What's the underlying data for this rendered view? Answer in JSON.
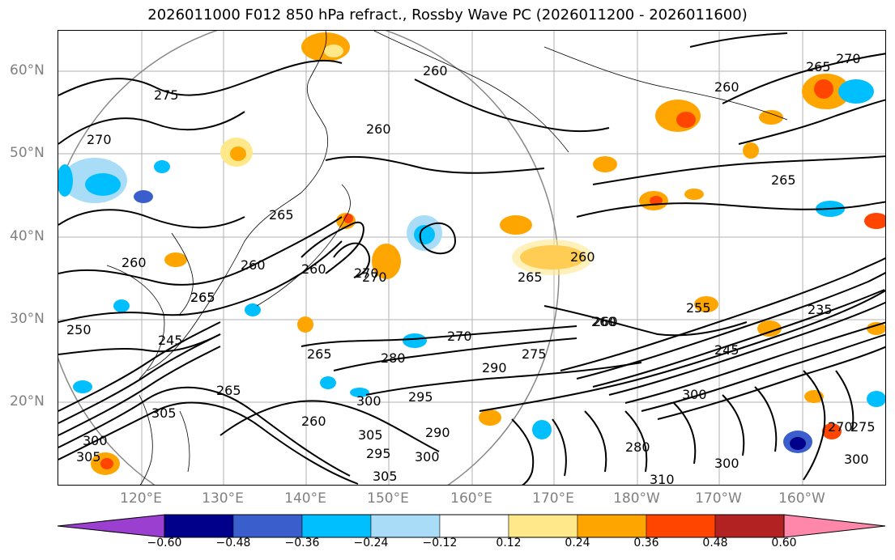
{
  "title": "2026011000 F012 850 hPa refract., Rossby Wave PC (2026011200 - 2026011600)",
  "lat_labels": [
    "60°N",
    "50°N",
    "40°N",
    "30°N",
    "20°N"
  ],
  "lon_labels": [
    "120°E",
    "130°E",
    "140°E",
    "150°E",
    "160°E",
    "170°E",
    "180°W",
    "170°W",
    "160°W"
  ],
  "colorbar": {
    "ticks": [
      "−0.60",
      "−0.48",
      "−0.36",
      "−0.24",
      "−0.12",
      "0.12",
      "0.24",
      "0.36",
      "0.48",
      "0.60"
    ],
    "colors": [
      "#9b3fd0",
      "#00008b",
      "#3a5fcd",
      "#00bfff",
      "#a8dcf7",
      "#ffffff",
      "#ffe88a",
      "#ffa500",
      "#ff4500",
      "#b22222",
      "#ff88aa"
    ]
  },
  "contour_labels": [
    "275",
    "270",
    "260",
    "260",
    "265",
    "260",
    "265",
    "270",
    "260",
    "260",
    "265",
    "270",
    "265",
    "250",
    "245",
    "265",
    "260",
    "270",
    "280",
    "290",
    "295",
    "300",
    "305",
    "305",
    "300",
    "305",
    "295",
    "290",
    "300",
    "305",
    "300",
    "275",
    "260",
    "265",
    "260",
    "255",
    "245",
    "235",
    "270",
    "300",
    "280",
    "275",
    "300",
    "310",
    "260",
    "265",
    "270",
    "260",
    "265"
  ]
}
